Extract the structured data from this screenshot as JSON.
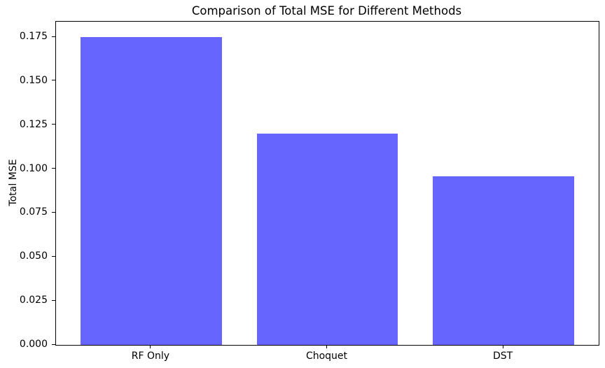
{
  "chart_data": {
    "type": "bar",
    "title": "Comparison of Total MSE for Different Methods",
    "xlabel": "",
    "ylabel": "Total MSE",
    "categories": [
      "RF Only",
      "Choquet",
      "DST"
    ],
    "values": [
      0.175,
      0.12,
      0.096
    ],
    "bar_color": "#6666ff",
    "ylim": [
      0,
      0.1838
    ],
    "xlim": [
      -0.54,
      2.54
    ],
    "bar_width_data_units": 0.8,
    "ytick_labels": [
      "0.000",
      "0.025",
      "0.050",
      "0.075",
      "0.100",
      "0.125",
      "0.150",
      "0.175"
    ],
    "ytick_values": [
      0.0,
      0.025,
      0.05,
      0.075,
      0.1,
      0.125,
      0.15,
      0.175
    ],
    "grid": false,
    "legend": null
  }
}
